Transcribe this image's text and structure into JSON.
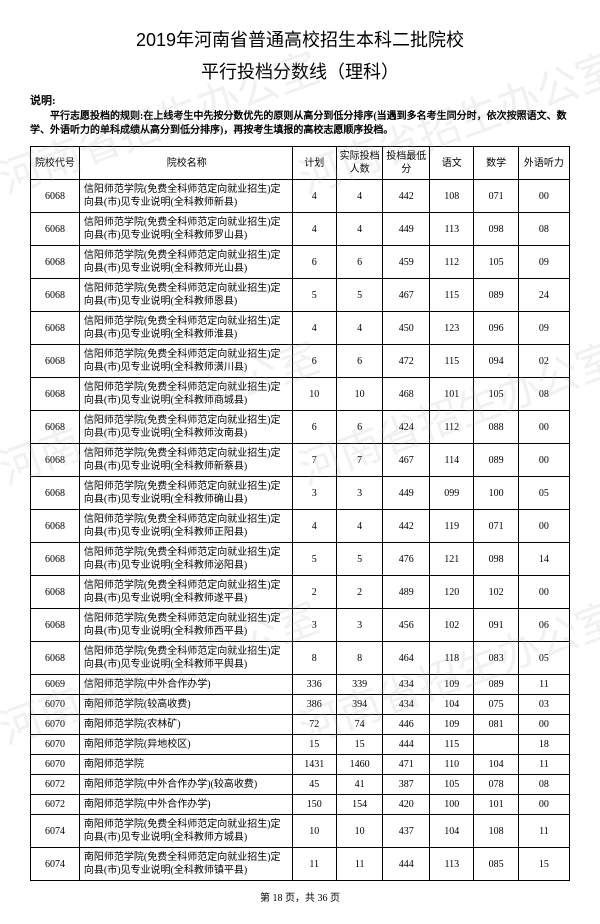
{
  "title_line1": "2019年河南省普通高校招生本科二批院校",
  "title_line2": "平行投档分数线（理科）",
  "note_label": "说明:",
  "note_body": "平行志愿投档的规则:在上线考生中先按分数优先的原则从高分到低分排序(当遇到多名考生同分时，依次按照语文、数学、外语听力的单科成绩从高分到低分排序)，再按考生填报的高校志愿顺序投档。",
  "columns": [
    "院校代号",
    "院校名称",
    "计划",
    "实际投档人数",
    "投档最低分",
    "语文",
    "数学",
    "外语听力"
  ],
  "rows": [
    [
      "6068",
      "信阳师范学院(免费全科师范定向就业招生)定向县(市)见专业说明(全科教师新县)",
      "4",
      "4",
      "442",
      "108",
      "071",
      "00"
    ],
    [
      "6068",
      "信阳师范学院(免费全科师范定向就业招生)定向县(市)见专业说明(全科教师罗山县)",
      "4",
      "4",
      "449",
      "113",
      "098",
      "08"
    ],
    [
      "6068",
      "信阳师范学院(免费全科师范定向就业招生)定向县(市)见专业说明(全科教师光山县)",
      "6",
      "6",
      "459",
      "112",
      "105",
      "09"
    ],
    [
      "6068",
      "信阳师范学院(免费全科师范定向就业招生)定向县(市)见专业说明(全科教师恩县)",
      "5",
      "5",
      "467",
      "115",
      "089",
      "24"
    ],
    [
      "6068",
      "信阳师范学院(免费全科师范定向就业招生)定向县(市)见专业说明(全科教师淮县)",
      "4",
      "4",
      "450",
      "123",
      "096",
      "09"
    ],
    [
      "6068",
      "信阳师范学院(免费全科师范定向就业招生)定向县(市)见专业说明(全科教师潢川县)",
      "6",
      "6",
      "472",
      "115",
      "094",
      "02"
    ],
    [
      "6068",
      "信阳师范学院(免费全科师范定向就业招生)定向县(市)见专业说明(全科教师商城县)",
      "10",
      "10",
      "468",
      "101",
      "105",
      "08"
    ],
    [
      "6068",
      "信阳师范学院(免费全科师范定向就业招生)定向县(市)见专业说明(全科教师汝南县)",
      "6",
      "6",
      "424",
      "112",
      "088",
      "00"
    ],
    [
      "6068",
      "信阳师范学院(免费全科师范定向就业招生)定向县(市)见专业说明(全科教师新蔡县)",
      "7",
      "7",
      "467",
      "114",
      "089",
      "00"
    ],
    [
      "6068",
      "信阳师范学院(免费全科师范定向就业招生)定向县(市)见专业说明(全科教师确山县)",
      "3",
      "3",
      "449",
      "099",
      "100",
      "05"
    ],
    [
      "6068",
      "信阳师范学院(免费全科师范定向就业招生)定向县(市)见专业说明(全科教师正阳县)",
      "4",
      "4",
      "442",
      "119",
      "071",
      "00"
    ],
    [
      "6068",
      "信阳师范学院(免费全科师范定向就业招生)定向县(市)见专业说明(全科教师泌阳县)",
      "5",
      "5",
      "476",
      "121",
      "098",
      "14"
    ],
    [
      "6068",
      "信阳师范学院(免费全科师范定向就业招生)定向县(市)见专业说明(全科教师遂平县)",
      "2",
      "2",
      "489",
      "120",
      "102",
      "00"
    ],
    [
      "6068",
      "信阳师范学院(免费全科师范定向就业招生)定向县(市)见专业说明(全科教师西平县)",
      "3",
      "3",
      "456",
      "102",
      "091",
      "06"
    ],
    [
      "6068",
      "信阳师范学院(免费全科师范定向就业招生)定向县(市)见专业说明(全科教师平舆县)",
      "8",
      "8",
      "464",
      "118",
      "083",
      "05"
    ],
    [
      "6069",
      "信阳师范学院(中外合作办学)",
      "336",
      "339",
      "434",
      "109",
      "089",
      "11"
    ],
    [
      "6070",
      "南阳师范学院(较高收费)",
      "386",
      "394",
      "434",
      "104",
      "075",
      "03"
    ],
    [
      "6070",
      "南阳师范学院(农林矿)",
      "72",
      "74",
      "446",
      "109",
      "081",
      "00"
    ],
    [
      "6070",
      "南阳师范学院(异地校区)",
      "15",
      "15",
      "444",
      "115",
      "",
      "18"
    ],
    [
      "6070",
      "南阳师范学院",
      "1431",
      "1460",
      "471",
      "110",
      "104",
      "11"
    ],
    [
      "6072",
      "南阳师范学院(中外合作办学)(较高收费)",
      "45",
      "41",
      "387",
      "105",
      "078",
      "08"
    ],
    [
      "6072",
      "南阳师范学院(中外合作办学)",
      "150",
      "154",
      "420",
      "100",
      "101",
      "00"
    ],
    [
      "6074",
      "南阳师范学院(免费全科师范定向就业招生)定向县(市)见专业说明(全科教师方城县)",
      "10",
      "10",
      "437",
      "104",
      "108",
      "11"
    ],
    [
      "6074",
      "南阳师范学院(免费全科师范定向就业招生)定向县(市)见专业说明(全科教师镇平县)",
      "11",
      "11",
      "444",
      "113",
      "085",
      "15"
    ]
  ],
  "footer": "第 18 页，共 36 页"
}
